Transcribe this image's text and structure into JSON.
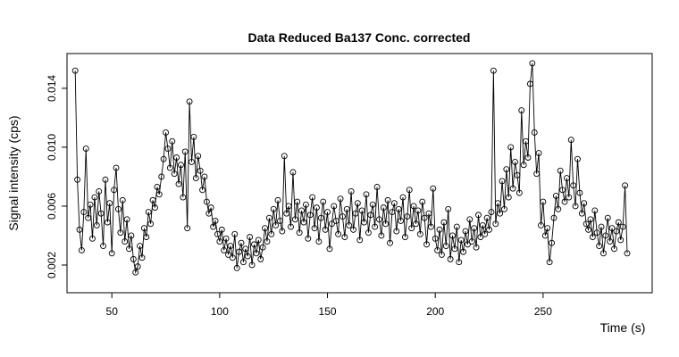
{
  "chart_data": {
    "type": "line",
    "markers": true,
    "color": "#000000",
    "title": "Data Reduced Ba137 Conc. corrected",
    "x_label": "Time (s)",
    "y_label": "Signal intensity (cps)",
    "xlim": [
      29.2,
      300.6
    ],
    "ylim": [
      0.00012,
      0.01636
    ],
    "xticks": [
      50,
      100,
      150,
      200,
      250
    ],
    "yticks": [
      0.002,
      0.006,
      {
        "value": 0.01,
        "label": "0.010"
      },
      0.014
    ],
    "x": [
      33,
      34,
      35,
      36,
      37,
      38,
      39,
      40,
      41,
      42,
      43,
      44,
      45,
      46,
      47,
      48,
      49,
      50,
      51,
      52,
      53,
      54,
      55,
      56,
      57,
      58,
      59,
      60,
      61,
      62,
      63,
      64,
      65,
      66,
      67,
      68,
      69,
      70,
      71,
      72,
      73,
      74,
      75,
      76,
      77,
      78,
      79,
      80,
      81,
      82,
      83,
      84,
      85,
      86,
      87,
      88,
      89,
      90,
      91,
      92,
      93,
      94,
      95,
      96,
      97,
      98,
      99,
      100,
      101,
      102,
      103,
      104,
      105,
      106,
      107,
      108,
      109,
      110,
      111,
      112,
      113,
      114,
      115,
      116,
      117,
      118,
      119,
      120,
      121,
      122,
      123,
      124,
      125,
      126,
      127,
      128,
      129,
      130,
      131,
      132,
      133,
      134,
      135,
      136,
      137,
      138,
      139,
      140,
      141,
      142,
      143,
      144,
      145,
      146,
      147,
      148,
      149,
      150,
      151,
      152,
      153,
      154,
      155,
      156,
      157,
      158,
      159,
      160,
      161,
      162,
      163,
      164,
      165,
      166,
      167,
      168,
      169,
      170,
      171,
      172,
      173,
      174,
      175,
      176,
      177,
      178,
      179,
      180,
      181,
      182,
      183,
      184,
      185,
      186,
      187,
      188,
      189,
      190,
      191,
      192,
      193,
      194,
      195,
      196,
      197,
      198,
      199,
      200,
      201,
      202,
      203,
      204,
      205,
      206,
      207,
      208,
      209,
      210,
      211,
      212,
      213,
      214,
      215,
      216,
      217,
      218,
      219,
      220,
      221,
      222,
      223,
      224,
      225,
      226,
      227,
      228,
      229,
      230,
      231,
      232,
      233,
      234,
      235,
      236,
      237,
      238,
      239,
      240,
      241,
      242,
      243,
      244,
      245,
      246,
      247,
      248,
      249,
      250,
      251,
      252,
      253,
      254,
      255,
      256,
      257,
      258,
      259,
      260,
      261,
      262,
      263,
      264,
      265,
      266,
      267,
      268,
      269,
      270,
      271,
      272,
      273,
      274,
      275,
      276,
      277,
      278,
      279,
      280,
      281,
      282,
      283,
      284,
      285,
      286,
      287,
      288,
      289
    ],
    "values": [
      0.0152,
      0.0078,
      0.0044,
      0.003,
      0.0056,
      0.0099,
      0.0052,
      0.0061,
      0.0038,
      0.0066,
      0.0047,
      0.007,
      0.0055,
      0.0033,
      0.0078,
      0.0049,
      0.0062,
      0.0028,
      0.0071,
      0.0086,
      0.0058,
      0.0042,
      0.0064,
      0.0036,
      0.0051,
      0.0031,
      0.004,
      0.0024,
      0.0015,
      0.0019,
      0.0033,
      0.0025,
      0.0045,
      0.0039,
      0.0056,
      0.0048,
      0.0064,
      0.0059,
      0.0073,
      0.0068,
      0.008,
      0.0092,
      0.011,
      0.0099,
      0.0086,
      0.0104,
      0.0082,
      0.0093,
      0.0075,
      0.0088,
      0.0066,
      0.0097,
      0.0045,
      0.0131,
      0.009,
      0.0107,
      0.0079,
      0.0094,
      0.0084,
      0.0071,
      0.008,
      0.0063,
      0.0055,
      0.0059,
      0.0046,
      0.005,
      0.0041,
      0.0036,
      0.0044,
      0.003,
      0.0038,
      0.0027,
      0.0033,
      0.0025,
      0.0041,
      0.0018,
      0.0029,
      0.0035,
      0.0022,
      0.0031,
      0.0026,
      0.0039,
      0.002,
      0.0034,
      0.0028,
      0.0037,
      0.0024,
      0.0032,
      0.0045,
      0.0036,
      0.0052,
      0.0041,
      0.0058,
      0.0047,
      0.0064,
      0.005,
      0.0043,
      0.0094,
      0.0055,
      0.006,
      0.0046,
      0.0083,
      0.0051,
      0.0063,
      0.0042,
      0.0057,
      0.0049,
      0.0061,
      0.0038,
      0.0054,
      0.0066,
      0.0045,
      0.0059,
      0.0036,
      0.0052,
      0.0063,
      0.0044,
      0.0056,
      0.0031,
      0.0048,
      0.006,
      0.005,
      0.0041,
      0.0065,
      0.0053,
      0.0039,
      0.0058,
      0.0047,
      0.007,
      0.0044,
      0.0055,
      0.0062,
      0.0037,
      0.0057,
      0.0049,
      0.0068,
      0.0042,
      0.0054,
      0.0061,
      0.0046,
      0.0073,
      0.0051,
      0.004,
      0.0059,
      0.0048,
      0.0064,
      0.0035,
      0.0056,
      0.0062,
      0.0043,
      0.0058,
      0.005,
      0.0066,
      0.0039,
      0.0053,
      0.0071,
      0.0045,
      0.006,
      0.0048,
      0.0057,
      0.0041,
      0.0063,
      0.0052,
      0.0034,
      0.0055,
      0.0046,
      0.0072,
      0.0038,
      0.003,
      0.0044,
      0.0027,
      0.0049,
      0.0033,
      0.0058,
      0.0024,
      0.004,
      0.0031,
      0.0046,
      0.0022,
      0.0037,
      0.0029,
      0.0043,
      0.0034,
      0.0051,
      0.0036,
      0.0045,
      0.0032,
      0.0054,
      0.0039,
      0.0047,
      0.0041,
      0.0052,
      0.0044,
      0.0056,
      0.0152,
      0.0048,
      0.0062,
      0.0055,
      0.0077,
      0.0058,
      0.0085,
      0.0066,
      0.01,
      0.0072,
      0.009,
      0.0081,
      0.0069,
      0.0125,
      0.0088,
      0.0104,
      0.0093,
      0.0143,
      0.0157,
      0.011,
      0.0082,
      0.0096,
      0.0047,
      0.0063,
      0.004,
      0.0045,
      0.0022,
      0.0035,
      0.0052,
      0.0067,
      0.0058,
      0.0084,
      0.0071,
      0.0063,
      0.0079,
      0.0066,
      0.0105,
      0.0074,
      0.006,
      0.0092,
      0.0069,
      0.0055,
      0.0062,
      0.0048,
      0.0044,
      0.0051,
      0.0039,
      0.0057,
      0.0042,
      0.0033,
      0.0046,
      0.0028,
      0.004,
      0.0052,
      0.0036,
      0.0045,
      0.0031,
      0.0043,
      0.0049,
      0.0037,
      0.0046,
      0.0074,
      0.0028
    ]
  }
}
